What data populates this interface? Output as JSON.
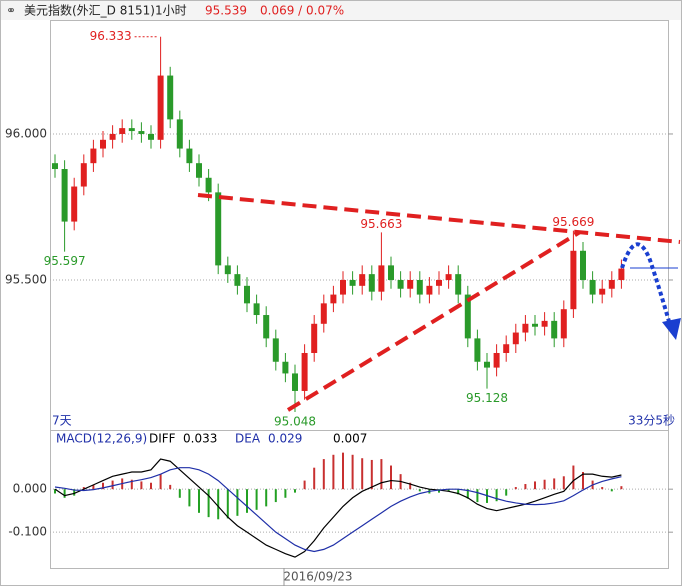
{
  "chart_data": [
    {
      "type": "candlestick",
      "title": "美元指数(外汇_D 8151)1小时",
      "price": "95.539",
      "change": "0.069 / 0.07%",
      "left_note": "7天",
      "right_note": "33分5秒",
      "up_color": "#e02020",
      "down_color": "#2a9a2a",
      "open": [
        95.9,
        95.88,
        95.7,
        95.82,
        95.9,
        95.95,
        95.98,
        96.0,
        96.02,
        96.01,
        96.0,
        95.98,
        96.2,
        96.05,
        95.95,
        95.9,
        95.85,
        95.8,
        95.55,
        95.52,
        95.48,
        95.42,
        95.38,
        95.3,
        95.22,
        95.18,
        95.12,
        95.25,
        95.35,
        95.42,
        95.45,
        95.5,
        95.48,
        95.52,
        95.46,
        95.55,
        95.5,
        95.47,
        95.5,
        95.45,
        95.48,
        95.5,
        95.52,
        95.45,
        95.3,
        95.22,
        95.2,
        95.25,
        95.28,
        95.32,
        95.35,
        95.34,
        95.36,
        95.3,
        95.4,
        95.6,
        95.5,
        95.45,
        95.47,
        95.5
      ],
      "high": [
        95.93,
        95.91,
        95.85,
        95.93,
        95.98,
        96.01,
        96.03,
        96.05,
        96.05,
        96.04,
        96.03,
        96.333,
        96.23,
        96.08,
        95.98,
        95.93,
        95.88,
        95.83,
        95.58,
        95.55,
        95.51,
        95.45,
        95.41,
        95.33,
        95.25,
        95.21,
        95.28,
        95.38,
        95.45,
        95.48,
        95.53,
        95.53,
        95.55,
        95.55,
        95.663,
        95.58,
        95.53,
        95.53,
        95.53,
        95.51,
        95.53,
        95.55,
        95.55,
        95.48,
        95.33,
        95.25,
        95.28,
        95.31,
        95.35,
        95.38,
        95.38,
        95.39,
        95.39,
        95.43,
        95.669,
        95.63,
        95.53,
        95.5,
        95.53,
        95.57
      ],
      "low": [
        95.85,
        95.597,
        95.67,
        95.79,
        95.87,
        95.92,
        95.95,
        95.97,
        95.98,
        95.97,
        95.95,
        95.95,
        96.02,
        95.92,
        95.87,
        95.82,
        95.77,
        95.52,
        95.49,
        95.45,
        95.39,
        95.35,
        95.27,
        95.19,
        95.15,
        95.048,
        95.09,
        95.22,
        95.32,
        95.39,
        95.42,
        95.45,
        95.45,
        95.43,
        95.43,
        95.47,
        95.44,
        95.44,
        95.42,
        95.42,
        95.45,
        95.47,
        95.42,
        95.27,
        95.19,
        95.128,
        95.17,
        95.22,
        95.25,
        95.29,
        95.31,
        95.31,
        95.27,
        95.27,
        95.37,
        95.47,
        95.42,
        95.42,
        95.44,
        95.47
      ],
      "close": [
        95.88,
        95.7,
        95.82,
        95.9,
        95.95,
        95.98,
        96.0,
        96.02,
        96.01,
        96.0,
        95.98,
        96.2,
        96.05,
        95.95,
        95.9,
        95.85,
        95.8,
        95.55,
        95.52,
        95.48,
        95.42,
        95.38,
        95.3,
        95.22,
        95.18,
        95.12,
        95.25,
        95.35,
        95.42,
        95.45,
        95.5,
        95.48,
        95.52,
        95.46,
        95.55,
        95.5,
        95.47,
        95.5,
        95.45,
        95.48,
        95.5,
        95.52,
        95.45,
        95.3,
        95.22,
        95.2,
        95.25,
        95.28,
        95.32,
        95.35,
        95.34,
        95.36,
        95.3,
        95.4,
        95.6,
        95.5,
        95.45,
        95.47,
        95.5,
        95.539
      ],
      "ylim": [
        95.0,
        96.38
      ],
      "yticks": [
        {
          "value": 96,
          "label": "96.000"
        },
        {
          "value": 95.5,
          "label": "95.500"
        }
      ],
      "grid": true
    },
    {
      "type": "macd",
      "title": "MACD(12,26,9)",
      "diff_label": "DIFF",
      "diff_value": "0.033",
      "dea_label": "DEA",
      "dea_value": "0.029",
      "macd_value": "0.007",
      "x_label": "2016/09/23",
      "hist": [
        -0.01,
        -0.02,
        -0.015,
        0.005,
        0.01,
        0.015,
        0.02,
        0.025,
        0.022,
        0.018,
        0.015,
        0.035,
        0.01,
        -0.02,
        -0.04,
        -0.055,
        -0.065,
        -0.07,
        -0.068,
        -0.062,
        -0.055,
        -0.048,
        -0.04,
        -0.03,
        -0.02,
        -0.008,
        0.02,
        0.05,
        0.07,
        0.08,
        0.085,
        0.08,
        0.072,
        0.068,
        0.07,
        0.055,
        0.035,
        0.015,
        -0.005,
        -0.01,
        -0.008,
        -0.005,
        -0.012,
        -0.022,
        -0.03,
        -0.032,
        -0.028,
        -0.015,
        0.005,
        0.012,
        0.018,
        0.022,
        0.025,
        0.03,
        0.055,
        0.04,
        0.02,
        0.005,
        -0.005,
        0.007
      ],
      "series": [
        {
          "name": "DIFF",
          "color": "#000000",
          "values": [
            0.0,
            -0.015,
            -0.01,
            0.0,
            0.01,
            0.02,
            0.03,
            0.035,
            0.04,
            0.04,
            0.045,
            0.07,
            0.065,
            0.045,
            0.025,
            0.005,
            -0.015,
            -0.04,
            -0.065,
            -0.085,
            -0.1,
            -0.115,
            -0.13,
            -0.14,
            -0.15,
            -0.158,
            -0.145,
            -0.12,
            -0.09,
            -0.065,
            -0.04,
            -0.02,
            -0.005,
            0.005,
            0.015,
            0.02,
            0.018,
            0.012,
            0.005,
            0.0,
            -0.002,
            -0.005,
            -0.01,
            -0.02,
            -0.035,
            -0.045,
            -0.05,
            -0.045,
            -0.04,
            -0.035,
            -0.028,
            -0.02,
            -0.012,
            -0.005,
            0.02,
            0.035,
            0.035,
            0.03,
            0.028,
            0.033
          ]
        },
        {
          "name": "DEA",
          "color": "#1f2fa8",
          "values": [
            0.005,
            0.002,
            -0.002,
            -0.003,
            -0.001,
            0.003,
            0.008,
            0.013,
            0.018,
            0.022,
            0.027,
            0.035,
            0.045,
            0.05,
            0.05,
            0.045,
            0.035,
            0.02,
            0.0,
            -0.02,
            -0.04,
            -0.06,
            -0.08,
            -0.1,
            -0.115,
            -0.13,
            -0.14,
            -0.145,
            -0.14,
            -0.13,
            -0.115,
            -0.1,
            -0.085,
            -0.07,
            -0.055,
            -0.04,
            -0.028,
            -0.018,
            -0.01,
            -0.005,
            -0.002,
            0.0,
            0.0,
            -0.003,
            -0.008,
            -0.015,
            -0.022,
            -0.028,
            -0.032,
            -0.035,
            -0.036,
            -0.035,
            -0.032,
            -0.027,
            -0.015,
            -0.002,
            0.01,
            0.018,
            0.024,
            0.029
          ]
        }
      ],
      "up_color": "#c83030",
      "down_color": "#22a022",
      "ylim": [
        -0.181,
        0.133
      ],
      "yticks": [
        {
          "value": 0,
          "label": "0.000"
        },
        {
          "value": -0.1,
          "label": "-0.100"
        }
      ],
      "grid": true
    }
  ]
}
